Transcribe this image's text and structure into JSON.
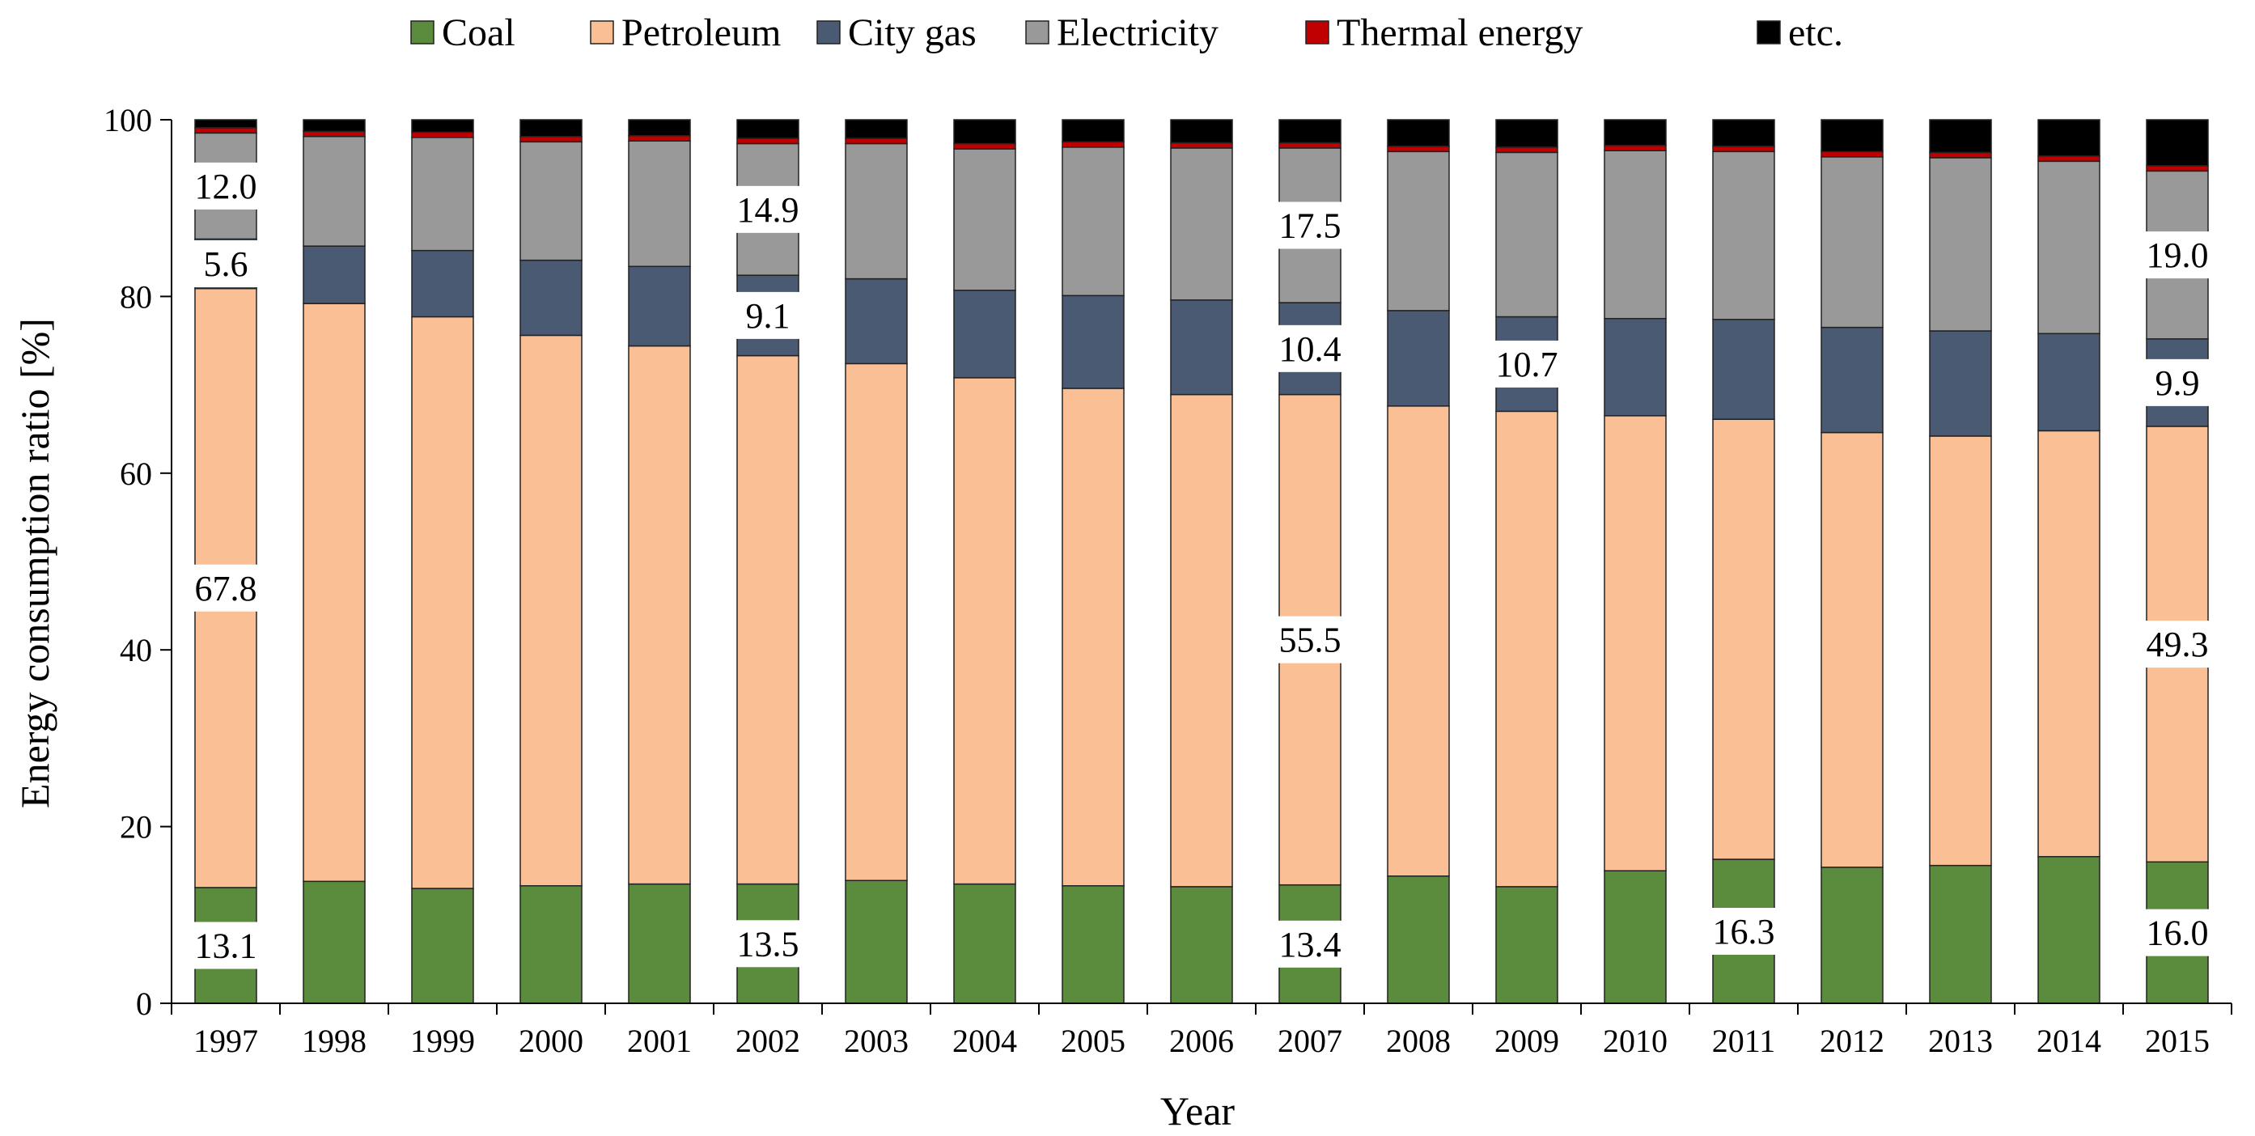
{
  "chart_data": {
    "type": "bar",
    "stacked": true,
    "title": "",
    "xlabel": "Year",
    "ylabel": "Energy consumption ratio [%]",
    "ylim": [
      0,
      100
    ],
    "yticks": [
      "0",
      "20",
      "40",
      "60",
      "80",
      "100"
    ],
    "grid": false,
    "legend_position": "top",
    "categories": [
      "1997",
      "1998",
      "1999",
      "2000",
      "2001",
      "2002",
      "2003",
      "2004",
      "2005",
      "2006",
      "2007",
      "2008",
      "2009",
      "2010",
      "2011",
      "2012",
      "2013",
      "2014",
      "2015"
    ],
    "series": [
      {
        "name": "Coal",
        "color": "#5b8c3e",
        "values": [
          13.1,
          13.8,
          13.0,
          13.3,
          13.5,
          13.5,
          13.9,
          13.5,
          13.3,
          13.2,
          13.4,
          14.4,
          13.2,
          15.0,
          16.3,
          15.4,
          15.6,
          16.6,
          16.0
        ]
      },
      {
        "name": "Petroleum",
        "color": "#fbbf95",
        "values": [
          67.8,
          65.4,
          64.7,
          62.3,
          60.9,
          59.8,
          58.5,
          57.3,
          56.3,
          55.7,
          55.5,
          53.2,
          53.8,
          51.5,
          49.8,
          49.2,
          48.6,
          48.2,
          49.3
        ]
      },
      {
        "name": "City gas",
        "color": "#4a5a73",
        "values": [
          5.6,
          6.5,
          7.5,
          8.5,
          9.0,
          9.1,
          9.6,
          9.9,
          10.5,
          10.7,
          10.4,
          10.8,
          10.7,
          11.0,
          11.3,
          11.9,
          11.9,
          11.0,
          9.9
        ]
      },
      {
        "name": "Electricity",
        "color": "#999999",
        "values": [
          12.0,
          12.4,
          12.8,
          13.4,
          14.2,
          14.9,
          15.3,
          16.0,
          16.8,
          17.2,
          17.5,
          18.0,
          18.6,
          19.0,
          19.0,
          19.3,
          19.6,
          19.5,
          19.0
        ]
      },
      {
        "name": "Thermal energy",
        "color": "#c00000",
        "values": [
          0.6,
          0.6,
          0.6,
          0.6,
          0.6,
          0.6,
          0.6,
          0.6,
          0.6,
          0.6,
          0.6,
          0.6,
          0.6,
          0.6,
          0.6,
          0.6,
          0.6,
          0.6,
          0.6
        ]
      },
      {
        "name": "etc.",
        "color": "#000000",
        "values": [
          0.9,
          1.3,
          1.4,
          1.9,
          1.8,
          2.1,
          2.1,
          2.7,
          2.5,
          2.6,
          2.6,
          3.0,
          3.1,
          2.9,
          3.0,
          3.6,
          3.7,
          4.1,
          5.2
        ]
      }
    ],
    "data_labels": [
      {
        "year": "1997",
        "series": "Coal",
        "text": "13.1"
      },
      {
        "year": "1997",
        "series": "Petroleum",
        "text": "67.8"
      },
      {
        "year": "1997",
        "series": "City gas",
        "text": "5.6"
      },
      {
        "year": "1997",
        "series": "Electricity",
        "text": "12.0"
      },
      {
        "year": "2002",
        "series": "Coal",
        "text": "13.5"
      },
      {
        "year": "2002",
        "series": "City gas",
        "text": "9.1"
      },
      {
        "year": "2002",
        "series": "Electricity",
        "text": "14.9"
      },
      {
        "year": "2007",
        "series": "Coal",
        "text": "13.4"
      },
      {
        "year": "2007",
        "series": "Petroleum",
        "text": "55.5"
      },
      {
        "year": "2007",
        "series": "City gas",
        "text": "10.4"
      },
      {
        "year": "2007",
        "series": "Electricity",
        "text": "17.5"
      },
      {
        "year": "2009",
        "series": "City gas",
        "text": "10.7"
      },
      {
        "year": "2011",
        "series": "Coal",
        "text": "16.3"
      },
      {
        "year": "2015",
        "series": "Coal",
        "text": "16.0"
      },
      {
        "year": "2015",
        "series": "Petroleum",
        "text": "49.3"
      },
      {
        "year": "2015",
        "series": "City gas",
        "text": "9.9"
      },
      {
        "year": "2015",
        "series": "Electricity",
        "text": "19.0"
      }
    ]
  }
}
